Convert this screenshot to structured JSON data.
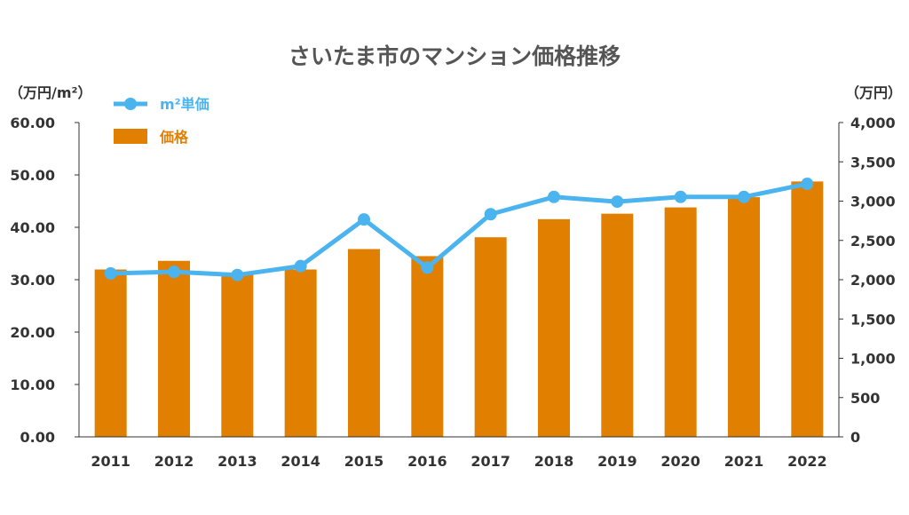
{
  "colors": {
    "bar": "#E07F00",
    "line": "#4BB4EF",
    "axis": "#333333",
    "text": "#555555"
  },
  "chart_data": {
    "type": "bar",
    "title": "さいたま市のマンション価格推移",
    "categories": [
      "2011",
      "2012",
      "2013",
      "2014",
      "2015",
      "2016",
      "2017",
      "2018",
      "2019",
      "2020",
      "2021",
      "2022"
    ],
    "left_axis_unit": "（万円/m²）",
    "right_axis_unit": "（万円）",
    "left_ticks": [
      "0.00",
      "10.00",
      "20.00",
      "30.00",
      "40.00",
      "50.00",
      "60.00"
    ],
    "right_ticks": [
      "0",
      "500",
      "1,000",
      "1,500",
      "2,000",
      "2,500",
      "3,000",
      "3,500",
      "4,000"
    ],
    "ylim_left": [
      0,
      60
    ],
    "ylim_right": [
      0,
      4000
    ],
    "legend_placement": "top-left",
    "series": [
      {
        "name": "m²単価",
        "type": "line",
        "axis": "left",
        "values": [
          31.2,
          31.5,
          30.9,
          32.6,
          41.5,
          32.3,
          42.5,
          45.8,
          44.9,
          45.8,
          45.8,
          48.3
        ]
      },
      {
        "name": "価格",
        "type": "bar",
        "axis": "right",
        "values": [
          2130,
          2240,
          2080,
          2130,
          2390,
          2300,
          2540,
          2770,
          2840,
          2920,
          3050,
          3250
        ]
      }
    ]
  }
}
